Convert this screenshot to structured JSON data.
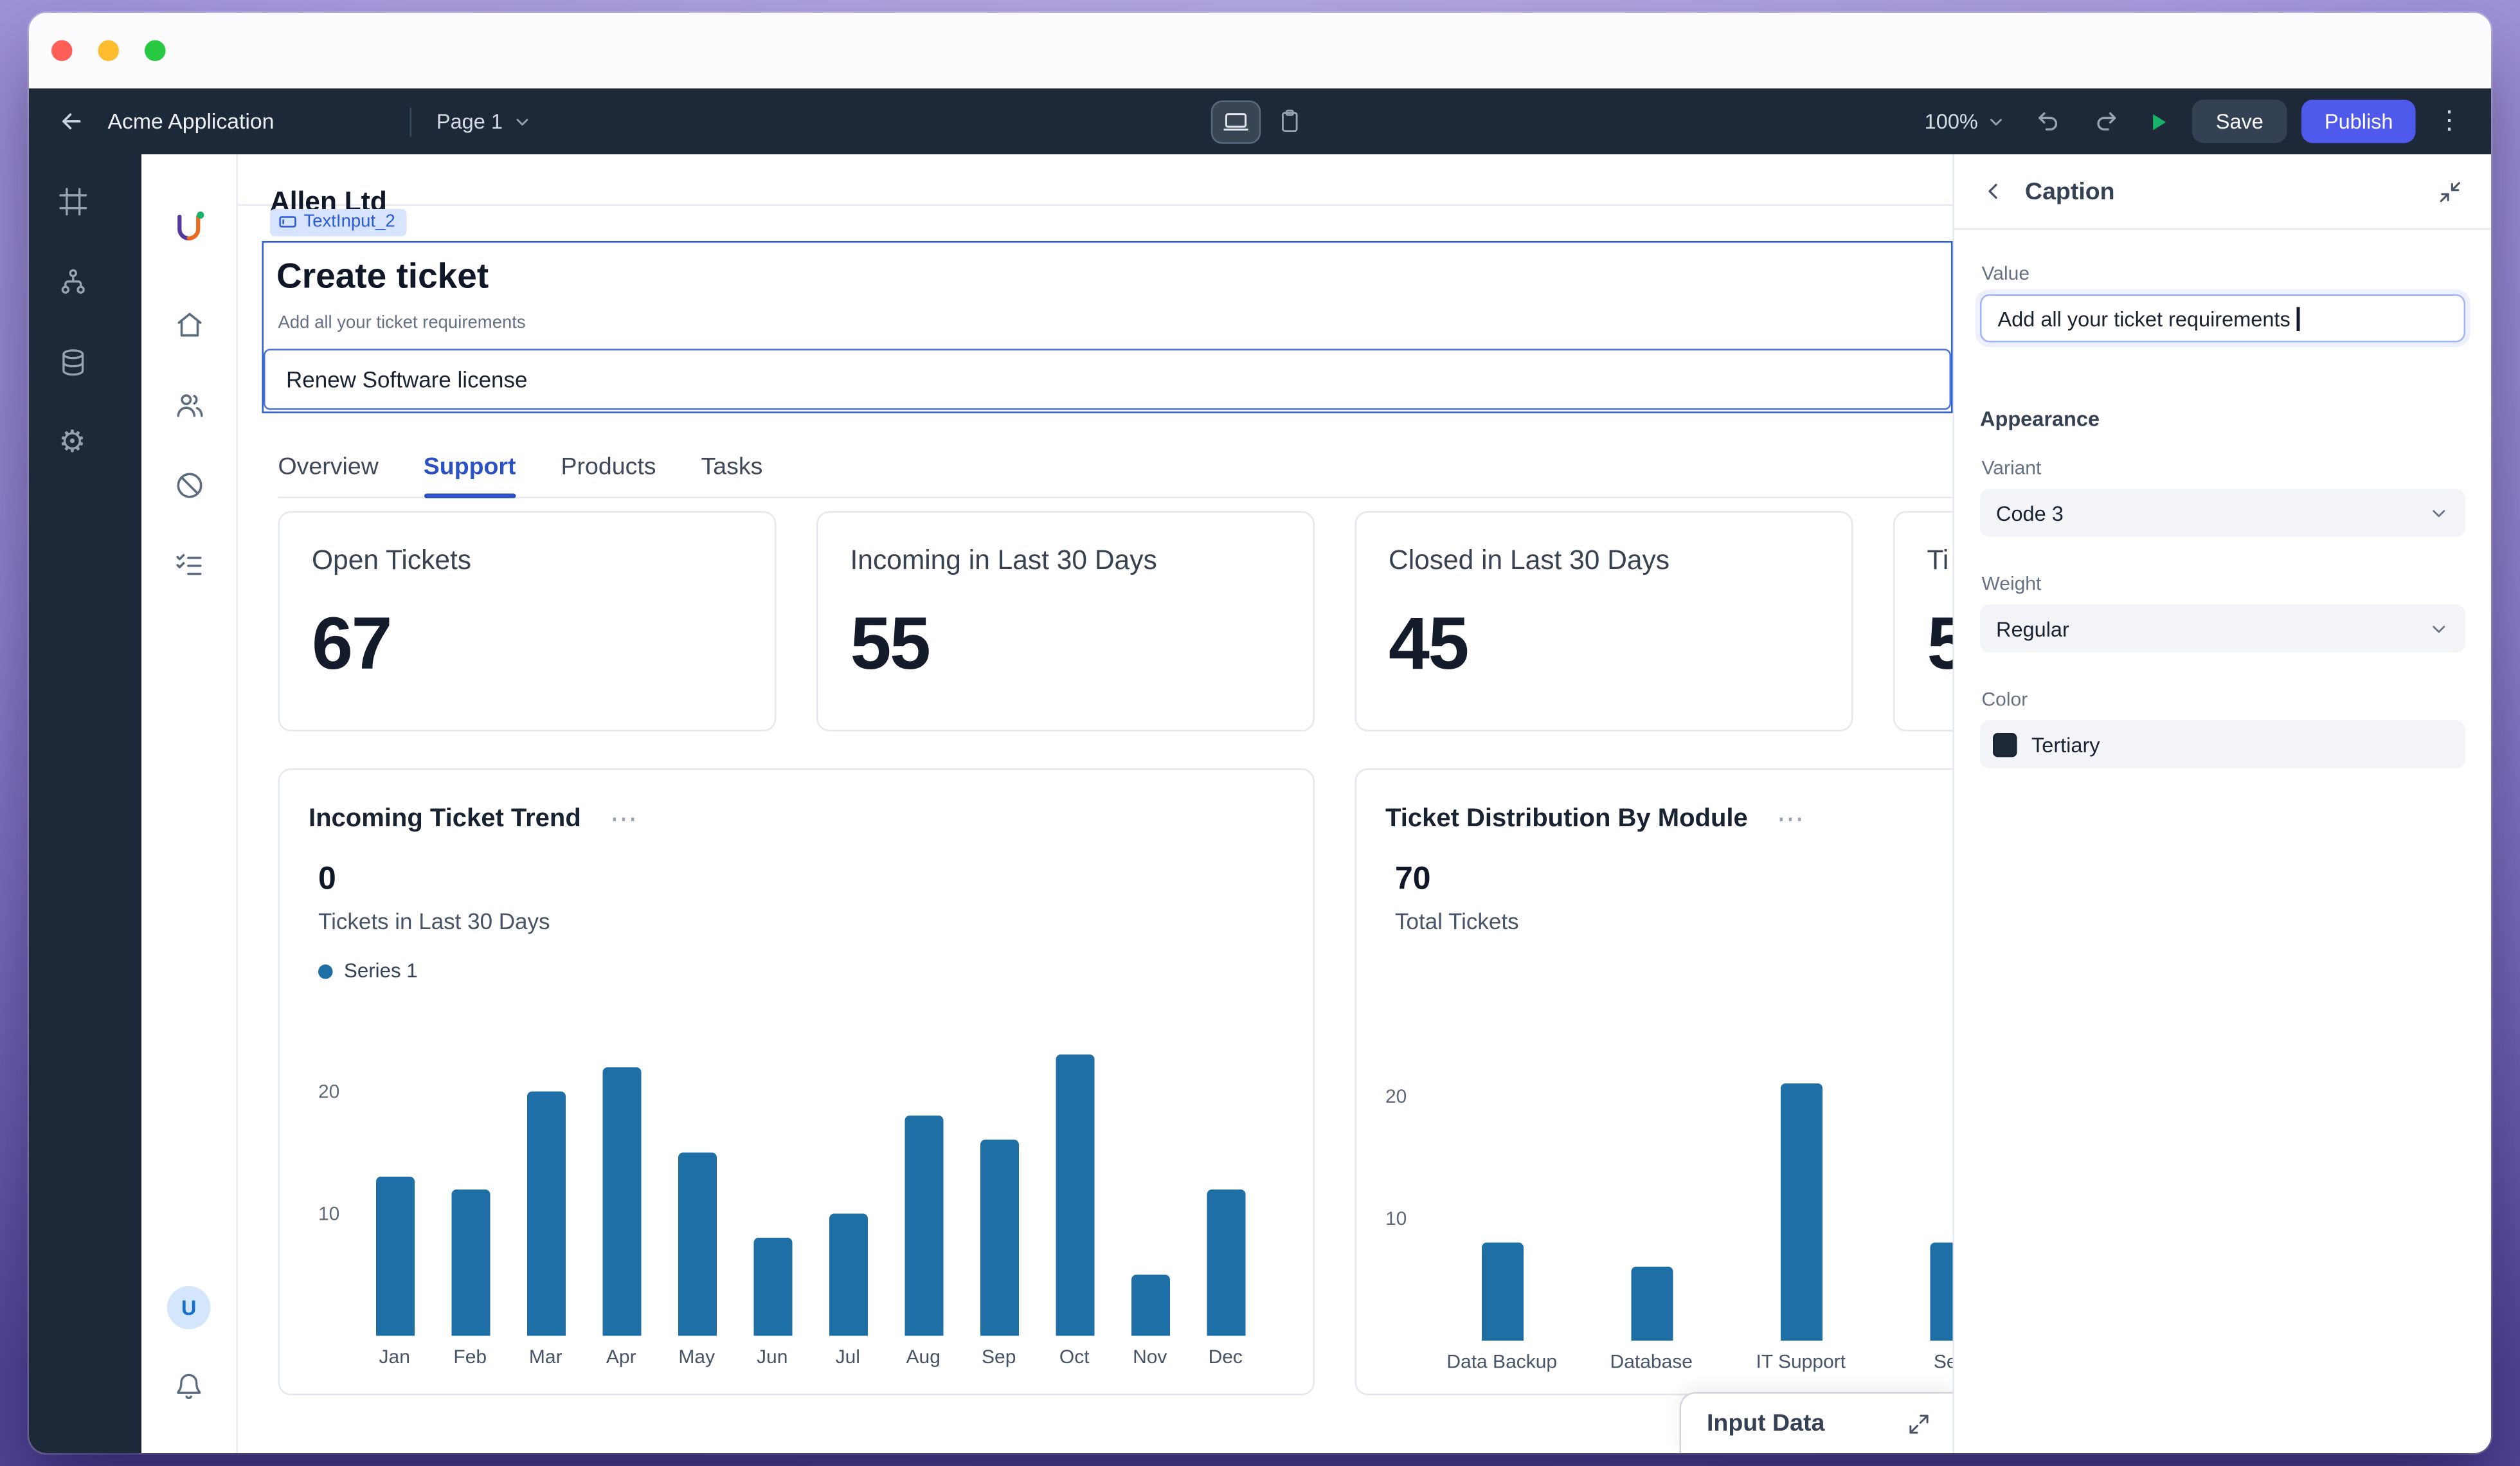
{
  "colors": {
    "toolbar_bg": "#1d2939",
    "accent_blue": "#2d5fd7",
    "publish_button": "#4f5aed",
    "save_button": "#344054",
    "play_green": "#17b26a",
    "bar_blue": "#1d6fa5",
    "traffic_close": "#ff5f57",
    "traffic_minimize": "#febc2e",
    "traffic_zoom": "#28c840"
  },
  "icons": {
    "kebab": "⋮",
    "card_menu": "⋯",
    "gear": "⚙"
  },
  "toolbar": {
    "app_name": "Acme Application",
    "page_label": "Page 1",
    "zoom": "100%",
    "save_label": "Save",
    "publish_label": "Publish"
  },
  "sidebar": {
    "avatar": "U"
  },
  "canvas": {
    "page_title": "Allen Ltd",
    "component": {
      "chip": "TextInput_2",
      "heading": "Create ticket",
      "caption": "Add all your ticket requirements",
      "input_value": "Renew Software license"
    },
    "tabs": [
      {
        "label": "Overview",
        "active": false
      },
      {
        "label": "Support",
        "active": true
      },
      {
        "label": "Products",
        "active": false
      },
      {
        "label": "Tasks",
        "active": false
      }
    ],
    "stats": [
      {
        "label": "Open Tickets",
        "value": "67"
      },
      {
        "label": "Incoming in Last 30 Days",
        "value": "55"
      },
      {
        "label": "Closed in Last 30 Days",
        "value": "45"
      },
      {
        "label": "Ti",
        "value": "5"
      }
    ],
    "drawer_label": "Input Data"
  },
  "chart_data": [
    {
      "type": "bar",
      "title": "Incoming Ticket Trend",
      "metric_value": "0",
      "metric_label": "Tickets in Last 30 Days",
      "legend": [
        "Series 1"
      ],
      "categories": [
        "Jan",
        "Feb",
        "Mar",
        "Apr",
        "May",
        "Jun",
        "Jul",
        "Aug",
        "Sep",
        "Oct",
        "Nov",
        "Dec"
      ],
      "values": [
        13,
        12,
        20,
        22,
        15,
        8,
        10,
        18,
        16,
        23,
        5,
        12
      ],
      "ylim": [
        0,
        25
      ],
      "yticks": [
        10,
        20
      ],
      "grid": false,
      "legend_position": "top-left",
      "bar_color": "#1d6fa5"
    },
    {
      "type": "bar",
      "title": "Ticket Distribution By Module",
      "metric_value": "70",
      "metric_label": "Total Tickets",
      "categories": [
        "Data Backup",
        "Database",
        "IT Support",
        "Sec"
      ],
      "values": [
        8,
        6,
        21,
        8
      ],
      "ylim": [
        0,
        25
      ],
      "yticks": [
        10,
        20
      ],
      "grid": false,
      "bar_color": "#1d6fa5"
    }
  ],
  "inspector": {
    "title": "Caption",
    "value_label": "Value",
    "value": "Add all your ticket requirements",
    "appearance_label": "Appearance",
    "variant_label": "Variant",
    "variant_value": "Code 3",
    "weight_label": "Weight",
    "weight_value": "Regular",
    "color_label": "Color",
    "color_value": "Tertiary",
    "swatch": "#1d2939"
  }
}
